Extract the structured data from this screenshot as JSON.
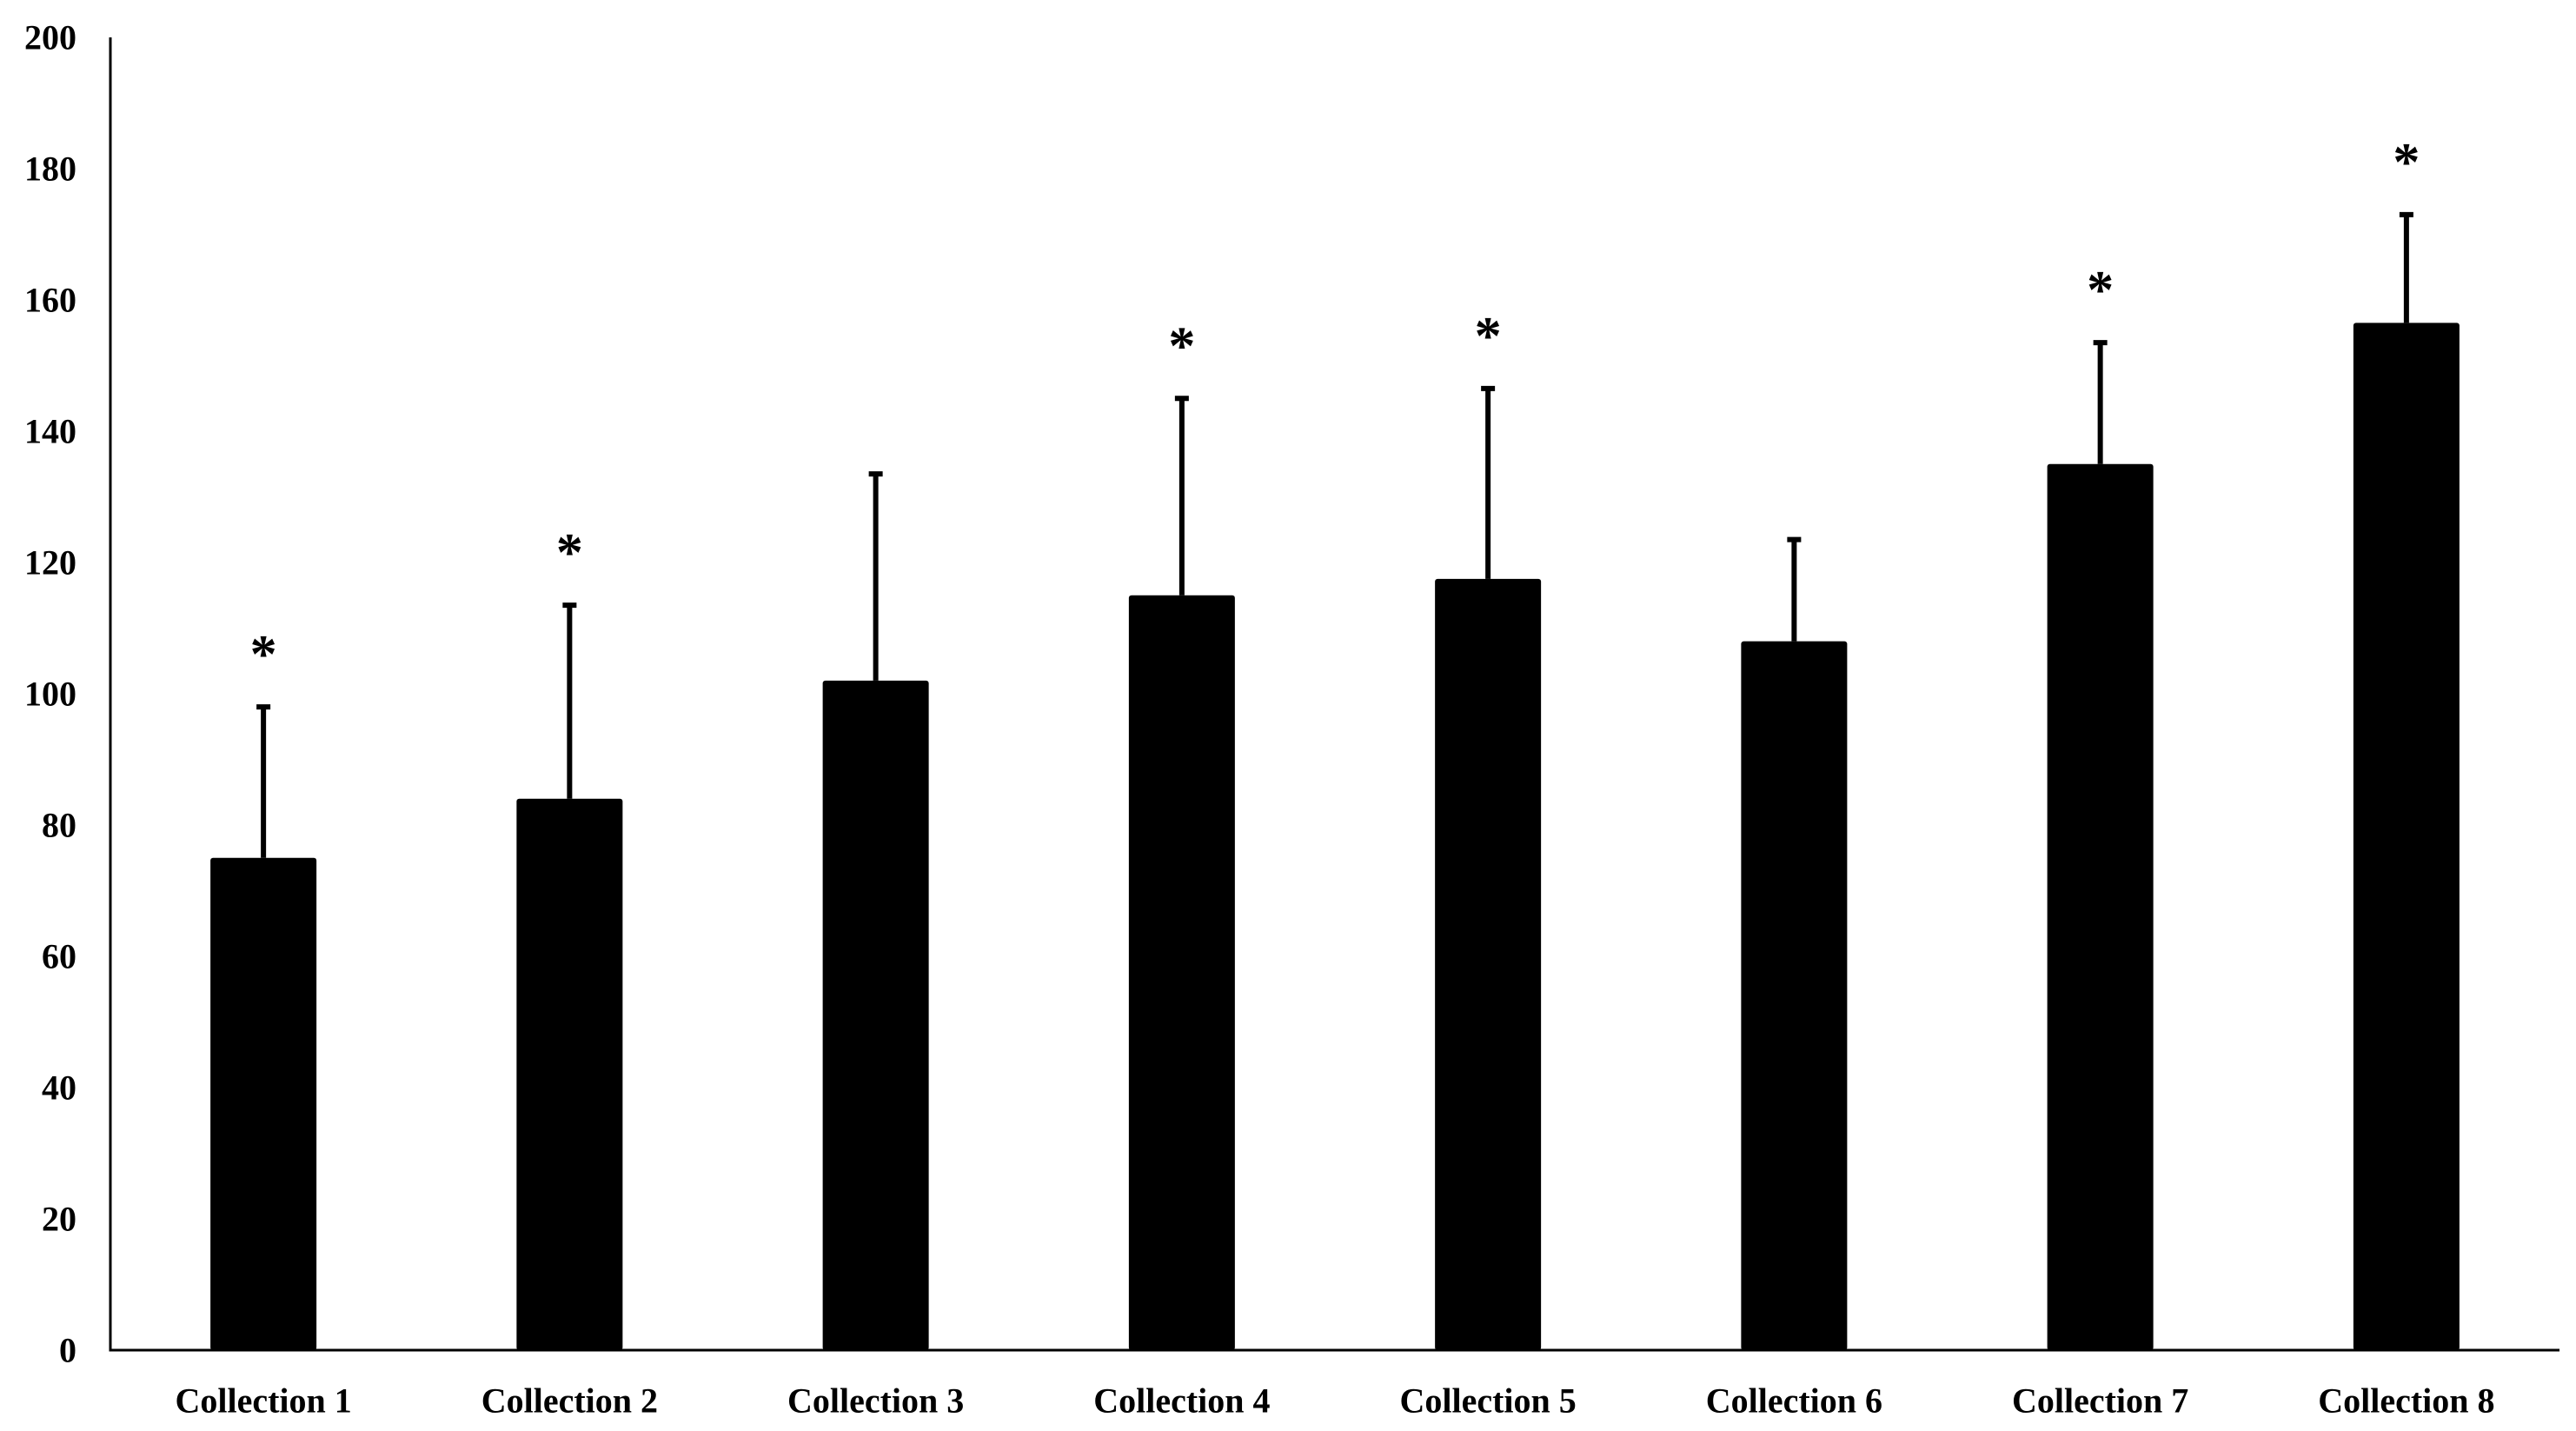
{
  "chart_data": {
    "type": "bar",
    "title": "",
    "xlabel": "",
    "ylabel": "",
    "ylim": [
      0,
      200
    ],
    "yticks": [
      0,
      20,
      40,
      60,
      80,
      100,
      120,
      140,
      160,
      180,
      200
    ],
    "grid": false,
    "legend": "none",
    "bar_color": "#000000",
    "categories": [
      "Collection 1",
      "Collection 2",
      "Collection 3",
      "Collection 4",
      "Collection 5",
      "Collection 6",
      "Collection 7",
      "Collection 8"
    ],
    "values": [
      75,
      84,
      102,
      115,
      117.5,
      108,
      135,
      156.5
    ],
    "error_upper": [
      98,
      113.5,
      133.5,
      145,
      146.5,
      123.5,
      153.5,
      173
    ],
    "significance": [
      "*",
      "*",
      "",
      "*",
      "*",
      "",
      "*",
      "*"
    ]
  }
}
